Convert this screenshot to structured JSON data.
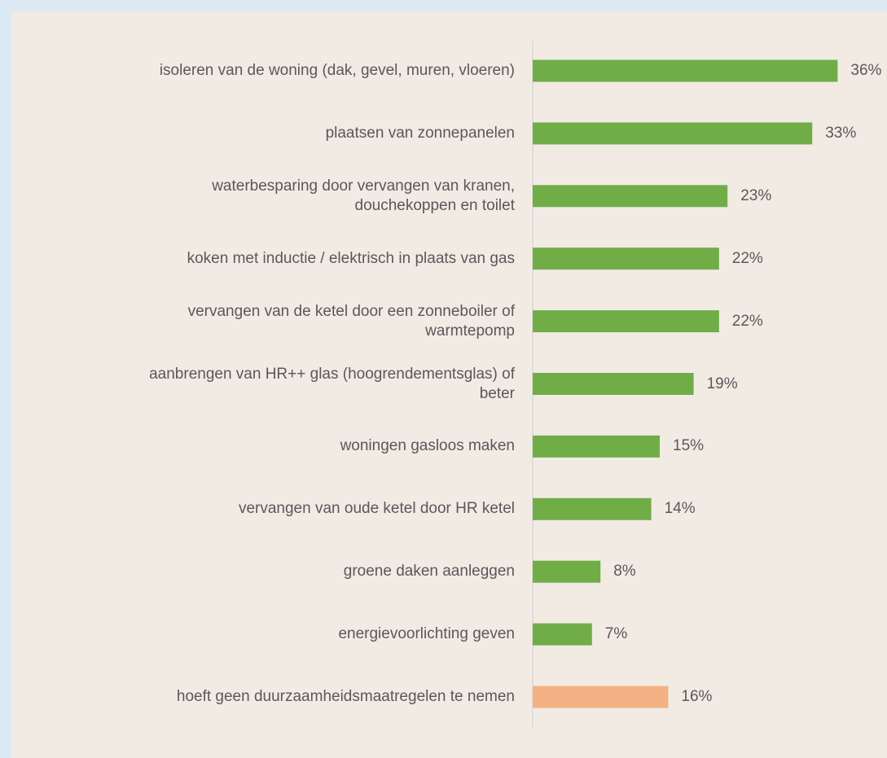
{
  "chart_data": {
    "type": "barh",
    "categories": [
      "isoleren van de woning (dak, gevel, muren, vloeren)",
      "plaatsen van zonnepanelen",
      "waterbesparing door vervangen van kranen, douchekoppen en toilet",
      "koken met inductie / elektrisch in plaats van gas",
      "vervangen van de ketel door een zonneboiler of warmtepomp",
      "aanbrengen van HR++ glas (hoogrendementsglas) of beter",
      "woningen gasloos maken",
      "vervangen van oude ketel door HR ketel",
      "groene daken aanleggen",
      "energievoorlichting geven",
      "hoeft geen duurzaamheidsmaatregelen te nemen"
    ],
    "values": [
      36,
      33,
      23,
      22,
      22,
      19,
      15,
      14,
      8,
      7,
      16
    ],
    "value_labels": [
      "36%",
      "33%",
      "23%",
      "22%",
      "22%",
      "19%",
      "15%",
      "14%",
      "8%",
      "7%",
      "16%"
    ],
    "colors": [
      "#70ad47",
      "#70ad47",
      "#70ad47",
      "#70ad47",
      "#70ad47",
      "#70ad47",
      "#70ad47",
      "#70ad47",
      "#70ad47",
      "#70ad47",
      "#f4b183"
    ]
  }
}
